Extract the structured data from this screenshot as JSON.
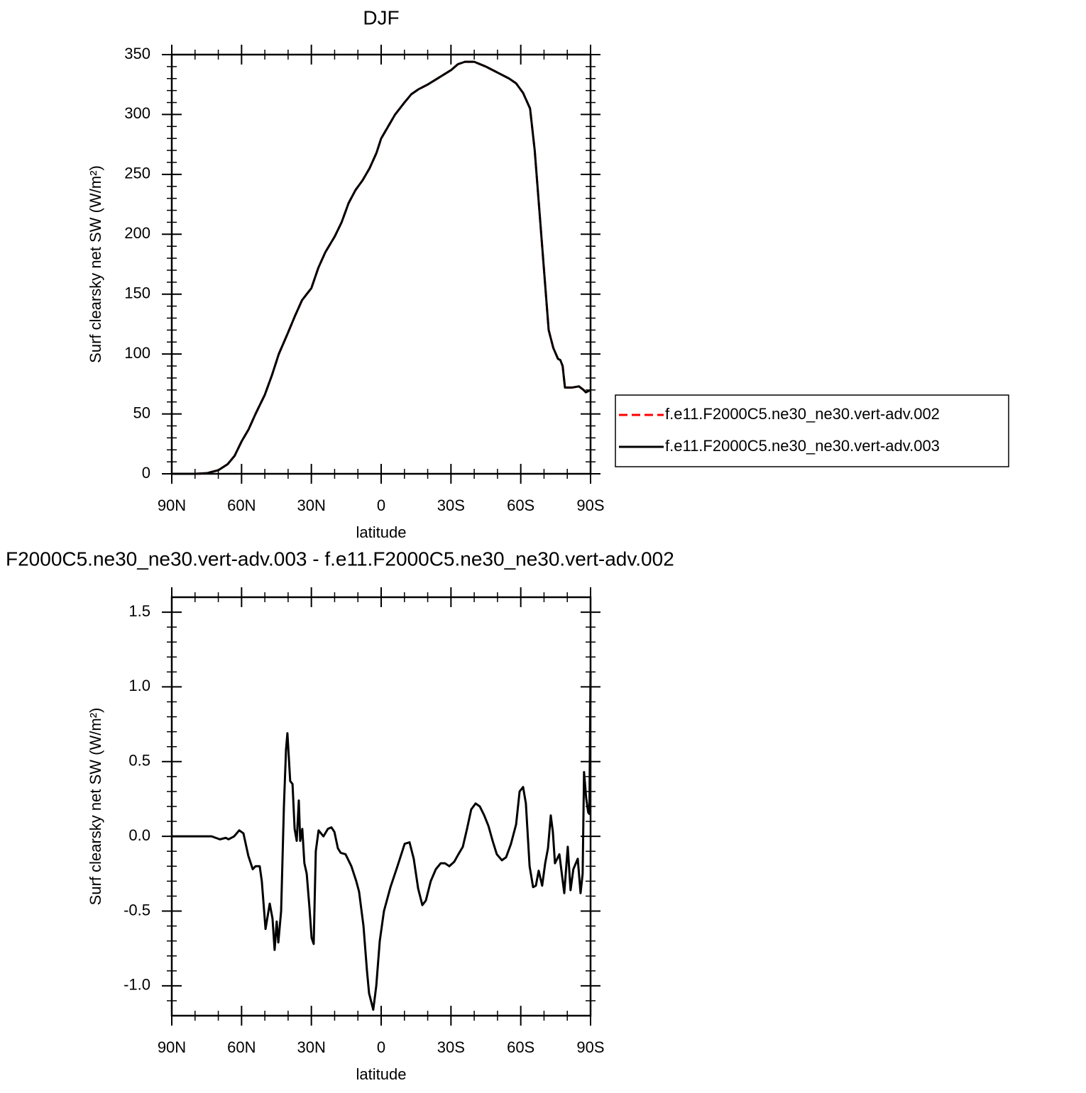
{
  "chart_data": [
    {
      "type": "line",
      "title": "DJF",
      "xlabel": "latitude",
      "ylabel": "Surf clearsky net SW (W/m²)",
      "xlim": [
        90,
        -90
      ],
      "xticks": [
        {
          "value": 90,
          "label": "90N"
        },
        {
          "value": 60,
          "label": "60N"
        },
        {
          "value": 30,
          "label": "30N"
        },
        0,
        {
          "value": -30,
          "label": "30S"
        },
        {
          "value": -60,
          "label": "60S"
        },
        {
          "value": -90,
          "label": "90S"
        }
      ],
      "xminorticks": [
        80,
        70,
        50,
        40,
        20,
        10,
        -10,
        -20,
        -40,
        -50,
        -70,
        -80
      ],
      "ylim": [
        0,
        350
      ],
      "yticks": [
        0,
        50,
        100,
        150,
        200,
        250,
        300,
        350
      ],
      "yminorticks": [
        10,
        20,
        30,
        40,
        60,
        70,
        80,
        90,
        110,
        120,
        130,
        140,
        160,
        170,
        180,
        190,
        210,
        220,
        230,
        240,
        260,
        270,
        280,
        290,
        310,
        320,
        330,
        340
      ],
      "legend": "right",
      "x": [
        90,
        80,
        75,
        70,
        66,
        63,
        60,
        57,
        54,
        50,
        47,
        44,
        40,
        37,
        34,
        30,
        27,
        24,
        20,
        17,
        14,
        11,
        8,
        5,
        2,
        0,
        -3,
        -6,
        -10,
        -13,
        -16,
        -20,
        -25,
        -30,
        -33,
        -36,
        -40,
        -45,
        -50,
        -55,
        -58,
        -61,
        -64,
        -66,
        -68,
        -70,
        -72,
        -74,
        -76,
        -77,
        -78,
        -79,
        -82,
        -85,
        -87,
        -88,
        -90
      ],
      "series": [
        {
          "name": "f.e11.F2000C5.ne30_ne30.vert-adv.002",
          "color": "#ff0000",
          "line_style": "dashed",
          "values": [
            0,
            0,
            0.5,
            3,
            8,
            15,
            27,
            37,
            50,
            66,
            82,
            100,
            118,
            132,
            145,
            155,
            172,
            185,
            198,
            210,
            226,
            237,
            245,
            255,
            268,
            280,
            290,
            300,
            310,
            317,
            321,
            325,
            331,
            337,
            342,
            344,
            344,
            340,
            335,
            330,
            326,
            318,
            305,
            270,
            220,
            170,
            120,
            105,
            96,
            95,
            90,
            72,
            72,
            73,
            70,
            68,
            70
          ]
        },
        {
          "name": "f.e11.F2000C5.ne30_ne30.vert-adv.003",
          "color": "#000000",
          "line_style": "solid",
          "values": [
            0,
            0,
            0.5,
            3,
            8,
            15,
            27,
            37,
            50,
            66,
            82,
            100,
            118,
            132,
            145,
            155,
            172,
            185,
            198,
            210,
            226,
            237,
            245,
            255,
            268,
            280,
            290,
            300,
            310,
            317,
            321,
            325,
            331,
            337,
            342,
            344,
            344,
            340,
            335,
            330,
            326,
            318,
            305,
            270,
            220,
            170,
            120,
            105,
            96,
            95,
            90,
            72,
            72,
            73,
            70,
            68,
            70
          ]
        }
      ]
    },
    {
      "type": "line",
      "title": "F2000C5.ne30_ne30.vert-adv.003 - f.e11.F2000C5.ne30_ne30.vert-adv.002",
      "xlabel": "latitude",
      "ylabel": "Surf clearsky net SW (W/m²)",
      "xlim": [
        90,
        -90
      ],
      "xticks": [
        {
          "value": 90,
          "label": "90N"
        },
        {
          "value": 60,
          "label": "60N"
        },
        {
          "value": 30,
          "label": "30N"
        },
        0,
        {
          "value": -30,
          "label": "30S"
        },
        {
          "value": -60,
          "label": "60S"
        },
        {
          "value": -90,
          "label": "90S"
        }
      ],
      "xminorticks": [
        80,
        70,
        50,
        40,
        20,
        10,
        -10,
        -20,
        -40,
        -50,
        -70,
        -80
      ],
      "ylim": [
        -1.2,
        1.6
      ],
      "yticks": [
        1.5,
        {
          "value": 1,
          "label": "1.0"
        },
        0.5,
        {
          "value": 0,
          "label": "0.0"
        },
        -0.5,
        {
          "value": -1,
          "label": "-1.0"
        }
      ],
      "yminorticks": [
        -1.1,
        -0.9,
        -0.8,
        -0.7,
        -0.6,
        -0.4,
        -0.3,
        -0.2,
        -0.1,
        0.1,
        0.2,
        0.3,
        0.4,
        0.6,
        0.7,
        0.8,
        0.9,
        1.1,
        1.2,
        1.3,
        1.4
      ],
      "x": [
        90,
        72.9,
        69.3,
        66.8,
        65.6,
        63.2,
        61,
        59.2,
        57.1,
        55.2,
        54,
        52.2,
        51.3,
        49.7,
        47.9,
        46.7,
        45.8,
        44.9,
        44.2,
        43,
        41.8,
        40.9,
        40.3,
        39.1,
        38.1,
        37.2,
        36.3,
        35.4,
        34.8,
        33.9,
        33,
        32,
        30.8,
        29.9,
        29,
        28.1,
        26.9,
        24.8,
        22.9,
        21.4,
        20.1,
        18.6,
        17.4,
        15.3,
        12.8,
        10.7,
        9.5,
        7.6,
        6.1,
        5.2,
        3.4,
        2.1,
        0.6,
        -1.2,
        -4,
        -7,
        -10.1,
        -12.2,
        -14,
        -15.9,
        -17.7,
        -19.2,
        -21.3,
        -23.5,
        -25.6,
        -27.4,
        -29.3,
        -31.4,
        -33.2,
        -35.1,
        -36.9,
        -38.7,
        -40.6,
        -42.4,
        -44.3,
        -46.1,
        -47.9,
        -49.7,
        -51.9,
        -53.7,
        -55.8,
        -58,
        -59.5,
        -61,
        -62.2,
        -63.8,
        -65.3,
        -66.5,
        -67.7,
        -69.2,
        -70.5,
        -71.7,
        -72.9,
        -73.8,
        -74.7,
        -76.6,
        -78.7,
        -80.2,
        -81.4,
        -82.6,
        -84.5,
        -85.7,
        -86.6,
        -87.2,
        -88.1,
        -89,
        -89.5,
        -90
      ],
      "series": [
        {
          "color": "#000000",
          "line_style": "solid",
          "values": [
            0,
            0,
            -0.02,
            -0.01,
            -0.02,
            0,
            0.04,
            0.02,
            -0.13,
            -0.22,
            -0.2,
            -0.2,
            -0.3,
            -0.62,
            -0.45,
            -0.55,
            -0.76,
            -0.57,
            -0.71,
            -0.5,
            0.2,
            0.58,
            0.69,
            0.37,
            0.35,
            0.05,
            -0.03,
            0.24,
            -0.03,
            0.05,
            -0.18,
            -0.25,
            -0.48,
            -0.68,
            -0.72,
            -0.1,
            0.04,
            0,
            0.05,
            0.06,
            0.03,
            -0.08,
            -0.11,
            -0.12,
            -0.2,
            -0.3,
            -0.37,
            -0.6,
            -0.9,
            -1.05,
            -1.16,
            -1,
            -0.7,
            -0.5,
            -0.34,
            -0.2,
            -0.05,
            -0.04,
            -0.15,
            -0.35,
            -0.46,
            -0.43,
            -0.3,
            -0.22,
            -0.18,
            -0.18,
            -0.2,
            -0.17,
            -0.12,
            -0.07,
            0.05,
            0.18,
            0.22,
            0.2,
            0.14,
            0.07,
            -0.03,
            -0.12,
            -0.16,
            -0.14,
            -0.05,
            0.08,
            0.3,
            0.33,
            0.22,
            -0.2,
            -0.34,
            -0.33,
            -0.23,
            -0.33,
            -0.18,
            -0.08,
            0.14,
            0.03,
            -0.18,
            -0.12,
            -0.38,
            -0.07,
            -0.36,
            -0.22,
            -0.15,
            -0.38,
            -0.25,
            0.43,
            0.26,
            0.16,
            0.15,
            1.1
          ]
        }
      ]
    }
  ]
}
